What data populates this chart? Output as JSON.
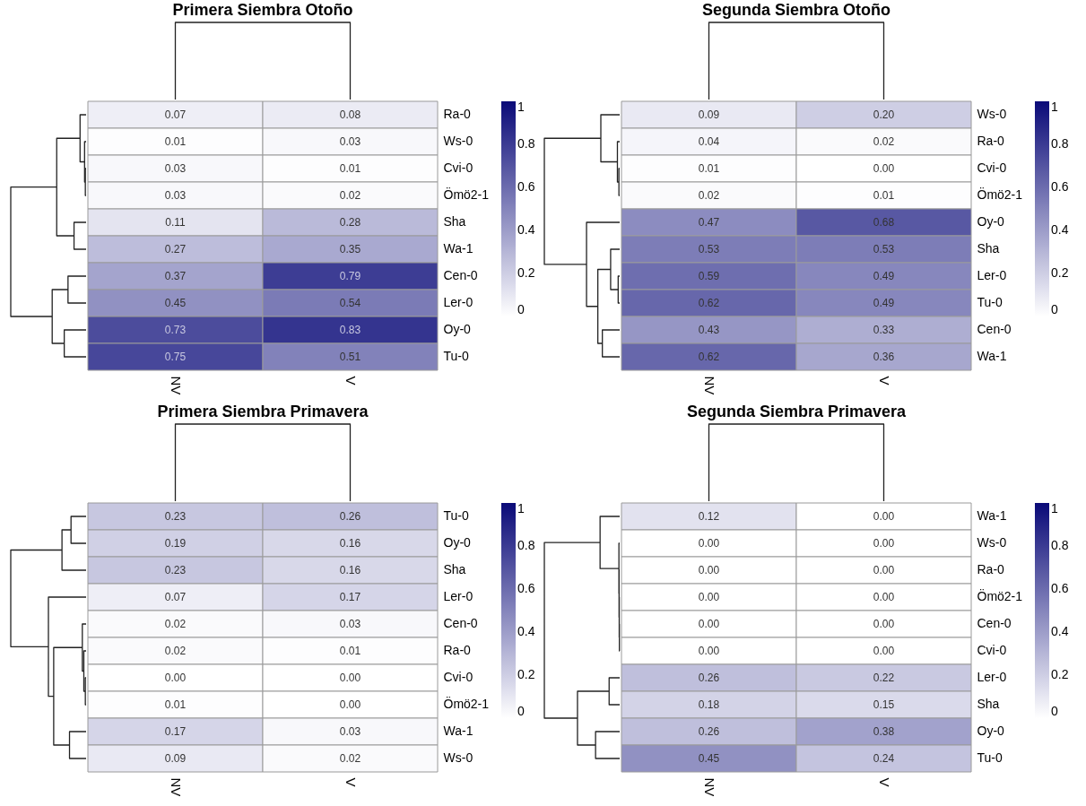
{
  "chart_data": [
    {
      "type": "heatmap",
      "title": "Primera Siembra Otoño",
      "categories": [
        "NV",
        "V"
      ],
      "y_categories": [
        "Ra-0",
        "Ws-0",
        "Cvi-0",
        "Ömö2-1",
        "Sha",
        "Wa-1",
        "Cen-0",
        "Ler-0",
        "Oy-0",
        "Tu-0"
      ],
      "cells": [
        [
          0.07,
          0.08
        ],
        [
          0.01,
          0.03
        ],
        [
          0.03,
          0.01
        ],
        [
          0.03,
          0.02
        ],
        [
          0.11,
          0.28
        ],
        [
          0.27,
          0.35
        ],
        [
          0.37,
          0.79
        ],
        [
          0.45,
          0.54
        ],
        [
          0.73,
          0.83
        ],
        [
          0.75,
          0.51
        ]
      ],
      "cell_labels": [
        [
          "0.07",
          "0.08"
        ],
        [
          "0.01",
          "0.03"
        ],
        [
          "0.03",
          "0.01"
        ],
        [
          "0.03",
          "0.02"
        ],
        [
          "0.11",
          "0.28"
        ],
        [
          "0.27",
          "0.35"
        ],
        [
          "0.37",
          "0.79"
        ],
        [
          "0.45",
          "0.54"
        ],
        [
          "0.73",
          "0.83"
        ],
        [
          "0.75",
          "0.51"
        ]
      ],
      "clim": [
        0,
        1
      ],
      "cticks": [
        0,
        0.2,
        0.4,
        0.6,
        0.8,
        1
      ]
    },
    {
      "type": "heatmap",
      "title": "Segunda Siembra Otoño",
      "categories": [
        "NV",
        "V"
      ],
      "y_categories": [
        "Ws-0",
        "Ra-0",
        "Cvi-0",
        "Ömö2-1",
        "Oy-0",
        "Sha",
        "Ler-0",
        "Tu-0",
        "Cen-0",
        "Wa-1"
      ],
      "cells": [
        [
          0.09,
          0.2
        ],
        [
          0.04,
          0.02
        ],
        [
          0.01,
          0
        ],
        [
          0.02,
          0.01
        ],
        [
          0.47,
          0.68
        ],
        [
          0.53,
          0.53
        ],
        [
          0.59,
          0.49
        ],
        [
          0.62,
          0.49
        ],
        [
          0.43,
          0.33
        ],
        [
          0.62,
          0.36
        ]
      ],
      "cell_labels": [
        [
          "0.09",
          "0.20"
        ],
        [
          "0.04",
          "0.02"
        ],
        [
          "0.01",
          "0.00"
        ],
        [
          "0.02",
          "0.01"
        ],
        [
          "0.47",
          "0.68"
        ],
        [
          "0.53",
          "0.53"
        ],
        [
          "0.59",
          "0.49"
        ],
        [
          "0.62",
          "0.49"
        ],
        [
          "0.43",
          "0.33"
        ],
        [
          "0.62",
          "0.36"
        ]
      ],
      "clim": [
        0,
        1
      ],
      "cticks": [
        0,
        0.2,
        0.4,
        0.6,
        0.8,
        1
      ]
    },
    {
      "type": "heatmap",
      "title": "Primera Siembra Primavera",
      "categories": [
        "NV",
        "V"
      ],
      "y_categories": [
        "Tu-0",
        "Oy-0",
        "Sha",
        "Ler-0",
        "Cen-0",
        "Ra-0",
        "Cvi-0",
        "Ömö2-1",
        "Wa-1",
        "Ws-0"
      ],
      "cells": [
        [
          0.23,
          0.26
        ],
        [
          0.19,
          0.16
        ],
        [
          0.23,
          0.16
        ],
        [
          0.07,
          0.17
        ],
        [
          0.02,
          0.03
        ],
        [
          0.02,
          0.01
        ],
        [
          0,
          0
        ],
        [
          0.01,
          0
        ],
        [
          0.17,
          0.03
        ],
        [
          0.09,
          0.02
        ]
      ],
      "cell_labels": [
        [
          "0.23",
          "0.26"
        ],
        [
          "0.19",
          "0.16"
        ],
        [
          "0.23",
          "0.16"
        ],
        [
          "0.07",
          "0.17"
        ],
        [
          "0.02",
          "0.03"
        ],
        [
          "0.02",
          "0.01"
        ],
        [
          "0.00",
          "0.00"
        ],
        [
          "0.01",
          "0.00"
        ],
        [
          "0.17",
          "0.03"
        ],
        [
          "0.09",
          "0.02"
        ]
      ],
      "clim": [
        0,
        1
      ],
      "cticks": [
        0,
        0.2,
        0.4,
        0.6,
        0.8,
        1
      ]
    },
    {
      "type": "heatmap",
      "title": "Segunda Siembra Primavera",
      "categories": [
        "NV",
        "V"
      ],
      "y_categories": [
        "Wa-1",
        "Ws-0",
        "Ra-0",
        "Ömö2-1",
        "Cen-0",
        "Cvi-0",
        "Ler-0",
        "Sha",
        "Oy-0",
        "Tu-0"
      ],
      "cells": [
        [
          0.12,
          0
        ],
        [
          0,
          0
        ],
        [
          0,
          0
        ],
        [
          0,
          0
        ],
        [
          0,
          0
        ],
        [
          0,
          0
        ],
        [
          0.26,
          0.22
        ],
        [
          0.18,
          0.15
        ],
        [
          0.26,
          0.38
        ],
        [
          0.45,
          0.24
        ]
      ],
      "cell_labels": [
        [
          "0.12",
          "0.00"
        ],
        [
          "0.00",
          "0.00"
        ],
        [
          "0.00",
          "0.00"
        ],
        [
          "0.00",
          "0.00"
        ],
        [
          "0.00",
          "0.00"
        ],
        [
          "0.00",
          "0.00"
        ],
        [
          "0.26",
          "0.22"
        ],
        [
          "0.18",
          "0.15"
        ],
        [
          "0.26",
          "0.38"
        ],
        [
          "0.45",
          "0.24"
        ]
      ],
      "clim": [
        0,
        1
      ],
      "cticks": [
        0,
        0.2,
        0.4,
        0.6,
        0.8,
        1
      ]
    }
  ]
}
